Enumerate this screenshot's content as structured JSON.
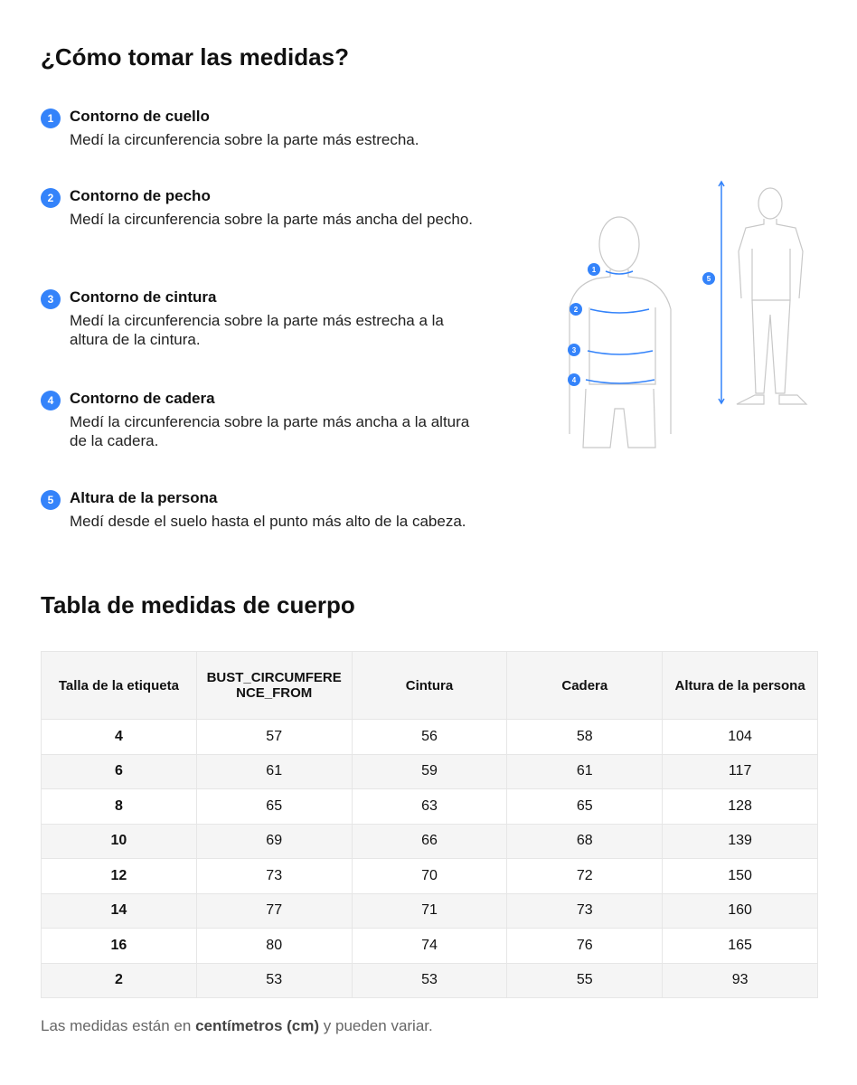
{
  "title": "¿Cómo tomar las medidas?",
  "steps": [
    {
      "n": "1",
      "title": "Contorno de cuello",
      "desc": "Medí la circunferencia sobre la parte más estrecha."
    },
    {
      "n": "2",
      "title": "Contorno de pecho",
      "desc": "Medí la circunferencia sobre la parte más ancha del pecho."
    },
    {
      "n": "3",
      "title": "Contorno de cintura",
      "desc": "Medí la circunferencia sobre la parte más estrecha a la altura de la cintura."
    },
    {
      "n": "4",
      "title": "Contorno de cadera",
      "desc": "Medí la circunferencia sobre la parte más ancha a la altura de la cadera."
    },
    {
      "n": "5",
      "title": "Altura de la persona",
      "desc": "Medí desde el suelo hasta el punto más alto de la cabeza."
    }
  ],
  "accent_color": "#3483fa",
  "table_title": "Tabla de medidas de cuerpo",
  "table": {
    "headers": [
      "Talla de la etiqueta",
      "BUST_CIRCUMFERENCE_FROM",
      "Cintura",
      "Cadera",
      "Altura de la persona"
    ],
    "rows": [
      [
        "4",
        "57",
        "56",
        "58",
        "104"
      ],
      [
        "6",
        "61",
        "59",
        "61",
        "117"
      ],
      [
        "8",
        "65",
        "63",
        "65",
        "128"
      ],
      [
        "10",
        "69",
        "66",
        "68",
        "139"
      ],
      [
        "12",
        "73",
        "70",
        "72",
        "150"
      ],
      [
        "14",
        "77",
        "71",
        "73",
        "160"
      ],
      [
        "16",
        "80",
        "74",
        "76",
        "165"
      ],
      [
        "2",
        "53",
        "53",
        "55",
        "93"
      ]
    ]
  },
  "note": {
    "pre": "Las medidas están en ",
    "bold": "centímetros (cm)",
    "post": " y pueden variar."
  }
}
